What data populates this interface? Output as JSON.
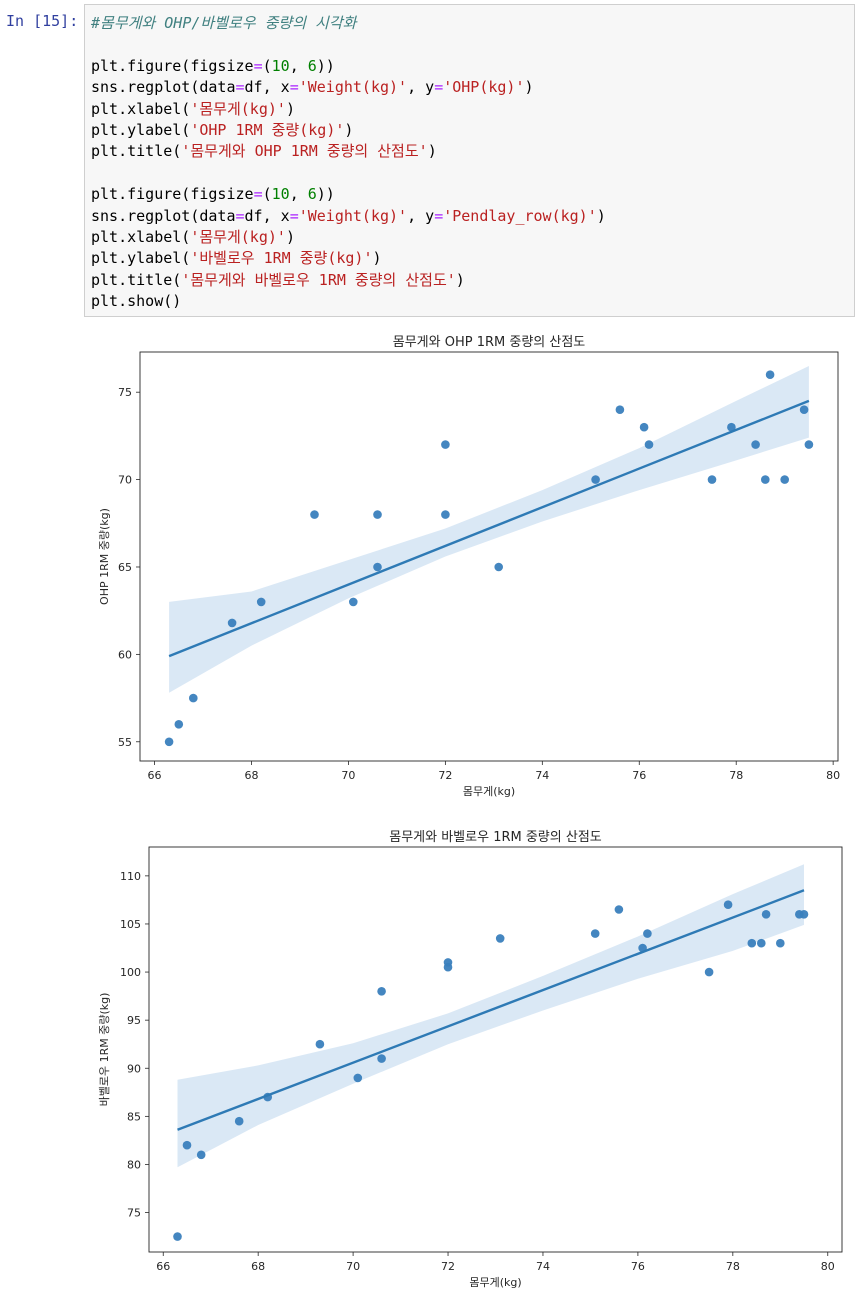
{
  "cell": {
    "prompt": "In [15]:",
    "code_lines": [
      [
        {
          "t": "#몸무게와 OHP/바벨로우 중량의 시각화",
          "c": "cm"
        }
      ],
      [],
      [
        {
          "t": "plt.figure(figsize"
        },
        {
          "t": "=",
          "c": "op"
        },
        {
          "t": "("
        },
        {
          "t": "10",
          "c": "nu"
        },
        {
          "t": ", "
        },
        {
          "t": "6",
          "c": "nu"
        },
        {
          "t": "))"
        }
      ],
      [
        {
          "t": "sns.regplot(data"
        },
        {
          "t": "=",
          "c": "op"
        },
        {
          "t": "df, x"
        },
        {
          "t": "=",
          "c": "op"
        },
        {
          "t": "'Weight(kg)'",
          "c": "st"
        },
        {
          "t": ", y"
        },
        {
          "t": "=",
          "c": "op"
        },
        {
          "t": "'OHP(kg)'",
          "c": "st"
        },
        {
          "t": ")"
        }
      ],
      [
        {
          "t": "plt.xlabel("
        },
        {
          "t": "'몸무게(kg)'",
          "c": "st"
        },
        {
          "t": ")"
        }
      ],
      [
        {
          "t": "plt.ylabel("
        },
        {
          "t": "'OHP 1RM 중량(kg)'",
          "c": "st"
        },
        {
          "t": ")"
        }
      ],
      [
        {
          "t": "plt.title("
        },
        {
          "t": "'몸무게와 OHP 1RM 중량의 산점도'",
          "c": "st"
        },
        {
          "t": ")"
        }
      ],
      [],
      [
        {
          "t": "plt.figure(figsize"
        },
        {
          "t": "=",
          "c": "op"
        },
        {
          "t": "("
        },
        {
          "t": "10",
          "c": "nu"
        },
        {
          "t": ", "
        },
        {
          "t": "6",
          "c": "nu"
        },
        {
          "t": "))"
        }
      ],
      [
        {
          "t": "sns.regplot(data"
        },
        {
          "t": "=",
          "c": "op"
        },
        {
          "t": "df, x"
        },
        {
          "t": "=",
          "c": "op"
        },
        {
          "t": "'Weight(kg)'",
          "c": "st"
        },
        {
          "t": ", y"
        },
        {
          "t": "=",
          "c": "op"
        },
        {
          "t": "'Pendlay_row(kg)'",
          "c": "st"
        },
        {
          "t": ")"
        }
      ],
      [
        {
          "t": "plt.xlabel("
        },
        {
          "t": "'몸무게(kg)'",
          "c": "st"
        },
        {
          "t": ")"
        }
      ],
      [
        {
          "t": "plt.ylabel("
        },
        {
          "t": "'바벨로우 1RM 중량(kg)'",
          "c": "st"
        },
        {
          "t": ")"
        }
      ],
      [
        {
          "t": "plt.title("
        },
        {
          "t": "'몸무게와 바벨로우 1RM 중량의 산점도'",
          "c": "st"
        },
        {
          "t": ")"
        }
      ],
      [
        {
          "t": "plt.show()"
        }
      ]
    ]
  },
  "colors": {
    "point": "#3a7fbd",
    "line": "#2e7ab5",
    "band": "#c6dbef"
  },
  "chart_data": [
    {
      "type": "scatter",
      "title": "몸무게와 OHP 1RM 중량의 산점도",
      "xlabel": "몸무게(kg)",
      "ylabel": "OHP 1RM 중량(kg)",
      "xlim": [
        65.7,
        80.1
      ],
      "ylim": [
        53.9,
        77.3
      ],
      "xticks": [
        66,
        68,
        70,
        72,
        74,
        76,
        78,
        80
      ],
      "yticks": [
        55,
        60,
        65,
        70,
        75
      ],
      "grid": false,
      "points": [
        [
          66.3,
          55
        ],
        [
          66.5,
          56
        ],
        [
          66.8,
          57.5
        ],
        [
          67.6,
          61.8
        ],
        [
          68.2,
          63
        ],
        [
          69.3,
          68
        ],
        [
          70.1,
          63
        ],
        [
          70.6,
          68
        ],
        [
          70.6,
          65
        ],
        [
          72.0,
          72
        ],
        [
          72.0,
          68
        ],
        [
          73.1,
          65
        ],
        [
          75.1,
          70
        ],
        [
          75.6,
          74
        ],
        [
          76.1,
          73
        ],
        [
          76.2,
          72
        ],
        [
          77.5,
          70
        ],
        [
          77.9,
          73
        ],
        [
          78.4,
          72
        ],
        [
          78.6,
          70
        ],
        [
          78.7,
          76
        ],
        [
          79.0,
          70
        ],
        [
          79.4,
          74
        ],
        [
          79.5,
          72
        ]
      ],
      "regression": {
        "x": [
          66.3,
          79.5
        ],
        "y": [
          59.9,
          74.5
        ]
      },
      "ci_band": {
        "x": [
          66.3,
          68,
          70,
          72,
          74,
          76,
          78,
          79.5
        ],
        "lower": [
          57.8,
          60.5,
          63.2,
          65.6,
          67.6,
          69.4,
          71.1,
          72.4
        ],
        "upper": [
          63.0,
          63.6,
          65.4,
          67.2,
          69.4,
          71.8,
          74.5,
          76.5
        ]
      }
    },
    {
      "type": "scatter",
      "title": "몸무게와 바벨로우 1RM 중량의 산점도",
      "xlabel": "몸무게(kg)",
      "ylabel": "바벨로우 1RM 중량(kg)",
      "xlim": [
        65.7,
        80.3
      ],
      "ylim": [
        70.9,
        113.0
      ],
      "xticks": [
        66,
        68,
        70,
        72,
        74,
        76,
        78,
        80
      ],
      "yticks": [
        75,
        80,
        85,
        90,
        95,
        100,
        105,
        110
      ],
      "grid": false,
      "points": [
        [
          66.3,
          72.5
        ],
        [
          66.5,
          82
        ],
        [
          66.8,
          81
        ],
        [
          67.6,
          84.5
        ],
        [
          68.2,
          87
        ],
        [
          69.3,
          92.5
        ],
        [
          70.1,
          89
        ],
        [
          70.6,
          98
        ],
        [
          70.6,
          91
        ],
        [
          72.0,
          101
        ],
        [
          72.0,
          100.5
        ],
        [
          73.1,
          103.5
        ],
        [
          75.1,
          104
        ],
        [
          75.6,
          106.5
        ],
        [
          76.1,
          102.5
        ],
        [
          76.2,
          104
        ],
        [
          77.5,
          100
        ],
        [
          77.9,
          107
        ],
        [
          78.4,
          103
        ],
        [
          78.6,
          103
        ],
        [
          78.7,
          106
        ],
        [
          79.0,
          103
        ],
        [
          79.4,
          106
        ],
        [
          79.5,
          106
        ]
      ],
      "regression": {
        "x": [
          66.3,
          79.5
        ],
        "y": [
          83.6,
          108.5
        ]
      },
      "ci_band": {
        "x": [
          66.3,
          68,
          70,
          72,
          74,
          76,
          78,
          79.5
        ],
        "lower": [
          79.7,
          84.1,
          88.4,
          92.5,
          96.0,
          99.3,
          102.2,
          104.9
        ],
        "upper": [
          88.8,
          90.3,
          92.6,
          95.7,
          99.6,
          103.7,
          108.1,
          111.2
        ]
      }
    }
  ]
}
